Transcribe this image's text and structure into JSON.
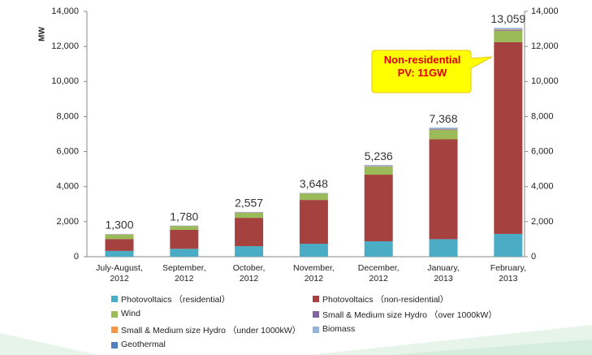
{
  "chart_data": {
    "type": "stacked_bar",
    "y_label": "MW",
    "annotation": "Non-residential\nPV: 11GW",
    "categories": [
      "July-August,\n2012",
      "September,\n2012",
      "October,\n2012",
      "November,\n2012",
      "December,\n2012",
      "January,\n2013",
      "February,\n2013"
    ],
    "series": [
      {
        "name": "Photovoltaics （residential）",
        "color": "#4bacc6",
        "values": [
          330,
          450,
          600,
          740,
          880,
          1000,
          1300
        ]
      },
      {
        "name": "Photovoltaics （non-residential）",
        "color": "#a5423f",
        "values": [
          680,
          1080,
          1620,
          2500,
          3800,
          5700,
          10940
        ]
      },
      {
        "name": "Wind",
        "color": "#9bbb59",
        "values": [
          250,
          220,
          290,
          370,
          460,
          530,
          650
        ]
      },
      {
        "name": "Small & Medium size Hydro （over 1000kW）",
        "color": "#8064a2",
        "values": [
          10,
          10,
          15,
          10,
          20,
          30,
          40
        ]
      },
      {
        "name": "Small & Medium size Hydro （under 1000kW）",
        "color": "#f79646",
        "values": [
          10,
          5,
          10,
          8,
          16,
          18,
          29
        ]
      },
      {
        "name": "Biomass",
        "color": "#95b3d7",
        "values": [
          20,
          15,
          22,
          20,
          60,
          90,
          100
        ]
      },
      {
        "name": "Geothermal",
        "color": "#4f81bd",
        "values": [
          0,
          0,
          0,
          0,
          0,
          0,
          0
        ]
      }
    ],
    "totals": [
      1300,
      1780,
      2557,
      3648,
      5236,
      7368,
      13059
    ],
    "total_labels": [
      "1,300",
      "1,780",
      "2,557",
      "3,648",
      "5,236",
      "7,368",
      "13,059"
    ],
    "ylim": [
      0,
      14000
    ],
    "yticks": [
      0,
      {
        "value": 2000,
        "label": "2,000"
      },
      {
        "value": 4000,
        "label": "4,000"
      },
      {
        "value": 6000,
        "label": "6,000"
      },
      {
        "value": 8000,
        "label": "8,000"
      },
      {
        "value": 10000,
        "label": "10,000"
      },
      {
        "value": 12000,
        "label": "12,000"
      },
      {
        "value": 14000,
        "label": "14,000"
      }
    ],
    "y2lim": [
      0,
      14000
    ],
    "y2ticks": [
      0,
      {
        "value": 2000,
        "label": "2,000"
      },
      {
        "value": 4000,
        "label": "4,000"
      },
      {
        "value": 6000,
        "label": "6,000"
      },
      {
        "value": 8000,
        "label": "8,000"
      },
      {
        "value": 10000,
        "label": "10,000"
      },
      {
        "value": 12000,
        "label": "12,000"
      },
      {
        "value": 14000,
        "label": "14,000"
      }
    ],
    "grid": false
  }
}
